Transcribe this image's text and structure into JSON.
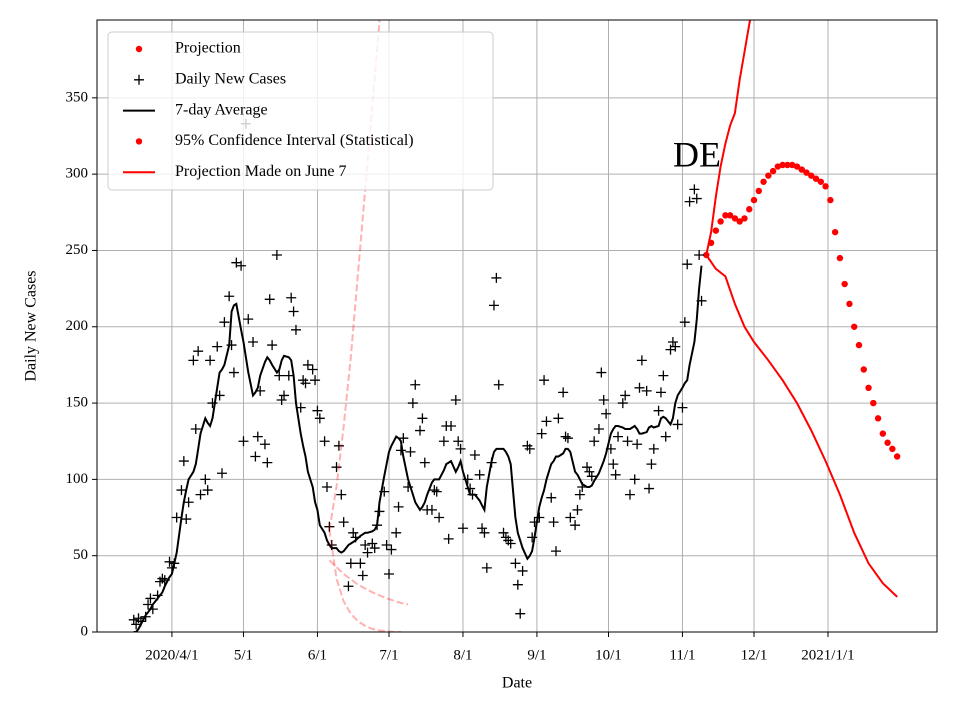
{
  "chart_data": {
    "type": "line",
    "annotation": "DE",
    "xlabel": "Date",
    "ylabel": "Daily New Cases",
    "xlim": [
      59.6,
      411.7
    ],
    "ylim": [
      0,
      401
    ],
    "xticks": [
      {
        "value": 91,
        "label": "2020/4/1"
      },
      {
        "value": 121,
        "label": "5/1"
      },
      {
        "value": 152,
        "label": "6/1"
      },
      {
        "value": 182,
        "label": "7/1"
      },
      {
        "value": 213,
        "label": "8/1"
      },
      {
        "value": 244,
        "label": "9/1"
      },
      {
        "value": 274,
        "label": "10/1"
      },
      {
        "value": 305,
        "label": "11/1"
      },
      {
        "value": 335,
        "label": "12/1"
      },
      {
        "value": 366,
        "label": "2021/1/1"
      }
    ],
    "yticks": [
      0,
      50,
      100,
      150,
      200,
      250,
      300,
      350
    ],
    "grid": true,
    "legend": "upper left",
    "x": [
      75,
      76,
      77,
      78,
      80,
      81,
      82,
      83,
      85,
      86,
      87,
      88,
      90,
      91,
      92,
      93,
      95,
      96,
      97,
      98,
      100,
      101,
      102,
      103,
      105,
      106,
      107,
      108,
      110,
      111,
      112,
      113,
      115,
      116,
      117,
      118,
      120,
      121,
      122,
      123,
      125,
      126,
      127,
      128,
      130,
      131,
      132,
      133,
      135,
      136,
      137,
      138,
      140,
      141,
      142,
      143,
      145,
      146,
      147,
      148,
      150,
      151,
      152,
      153,
      155,
      156,
      157,
      158,
      160,
      161,
      162,
      163,
      165,
      166,
      167,
      168,
      170,
      171,
      172,
      173,
      175,
      176,
      177,
      178,
      180,
      181,
      182,
      183,
      185,
      186,
      187,
      188,
      190,
      191,
      192,
      193,
      195,
      196,
      197,
      198,
      200,
      201,
      202,
      203,
      205,
      206,
      207,
      208,
      210,
      211,
      212,
      213,
      215,
      216,
      217,
      218,
      220,
      221,
      222,
      223,
      225,
      226,
      227,
      228,
      230,
      231,
      232,
      233,
      235,
      236,
      237,
      238,
      240,
      241,
      242,
      243,
      245,
      246,
      247,
      248,
      250,
      251,
      252,
      253,
      255,
      256,
      257,
      258,
      260,
      261,
      262,
      263,
      265,
      266,
      267,
      268,
      270,
      271,
      272,
      273,
      275,
      276,
      277,
      278,
      280,
      281,
      282,
      283,
      285,
      286,
      287,
      288,
      290,
      291,
      292,
      293,
      295,
      296,
      297,
      298,
      300,
      301,
      302,
      303,
      305,
      306,
      307,
      308,
      310,
      311,
      312,
      313
    ],
    "series": [
      {
        "name": "Projection",
        "color": "#ff0000",
        "marker": "dot",
        "x": [
          315,
          317,
          319,
          321,
          323,
          325,
          327,
          329,
          331,
          333,
          335,
          337,
          339,
          341,
          343,
          345,
          347,
          349,
          351,
          353,
          355,
          357,
          359,
          361,
          363,
          365,
          367,
          369,
          371,
          373,
          375,
          377,
          379,
          381,
          383,
          385,
          387,
          389,
          391,
          393,
          395
        ],
        "values": [
          247,
          255,
          263,
          269,
          273,
          273,
          271,
          269,
          271,
          277,
          283,
          289,
          295,
          299,
          302,
          305,
          306,
          306,
          306,
          305,
          303,
          301,
          299,
          297,
          295,
          292,
          283,
          262,
          245,
          228,
          215,
          200,
          188,
          172,
          160,
          150,
          140,
          130,
          124,
          120,
          115
        ]
      },
      {
        "name": "Daily New Cases",
        "color": "#000000",
        "marker": "plus",
        "values": [
          8,
          5,
          9,
          7,
          10,
          18,
          22,
          15,
          24,
          33,
          35,
          34,
          46,
          42,
          45,
          75,
          93,
          112,
          74,
          85,
          178,
          133,
          184,
          90,
          100,
          93,
          178,
          150,
          187,
          155,
          104,
          203,
          220,
          188,
          170,
          242,
          240,
          125,
          333,
          205,
          190,
          115,
          128,
          158,
          123,
          111,
          218,
          188,
          247,
          168,
          152,
          155,
          168,
          219,
          210,
          198,
          147,
          165,
          163,
          175,
          172,
          165,
          145,
          140,
          125,
          95,
          69,
          57,
          108,
          122,
          90,
          72,
          30,
          45,
          65,
          62,
          45,
          37,
          57,
          52,
          58,
          55,
          70,
          79,
          92,
          57,
          38,
          54,
          65,
          82,
          119,
          127,
          95,
          118,
          150,
          162,
          132,
          140,
          111,
          80,
          80,
          93,
          92,
          75,
          125,
          135,
          61,
          135,
          152,
          125,
          120,
          68,
          100,
          94,
          90,
          116,
          103,
          68,
          65,
          42,
          111,
          214,
          232,
          162,
          65,
          62,
          60,
          58,
          45,
          31,
          12,
          40,
          122,
          120,
          62,
          72,
          75,
          130,
          165,
          138,
          88,
          72,
          53,
          140,
          157,
          128,
          127,
          75,
          70,
          80,
          90,
          95,
          108,
          105,
          102,
          125,
          133,
          170,
          152,
          143,
          120,
          110,
          103,
          128,
          150,
          155,
          125,
          90,
          100,
          123,
          160,
          178,
          158,
          94,
          110,
          120,
          145,
          157,
          168,
          128,
          185,
          190,
          187,
          136,
          147,
          203,
          241,
          282,
          290,
          284,
          247,
          217
        ]
      },
      {
        "name": "7-day Average",
        "color": "#000000",
        "marker": "line",
        "values": [
          0,
          0,
          2,
          5,
          11,
          13,
          15,
          18,
          22,
          24,
          26,
          30,
          36,
          38,
          45,
          52,
          75,
          85,
          93,
          100,
          105,
          110,
          120,
          130,
          140,
          137,
          135,
          140,
          160,
          170,
          172,
          175,
          188,
          210,
          214,
          215,
          198,
          190,
          180,
          170,
          155,
          157,
          160,
          168,
          177,
          180,
          178,
          175,
          170,
          172,
          178,
          181,
          180,
          178,
          168,
          150,
          130,
          122,
          115,
          105,
          95,
          85,
          80,
          70,
          65,
          60,
          57,
          55,
          55,
          53,
          52,
          53,
          57,
          58,
          59,
          60,
          63,
          64,
          65,
          65,
          66,
          67,
          70,
          85,
          102,
          110,
          118,
          122,
          128,
          127,
          125,
          115,
          100,
          95,
          90,
          85,
          80,
          82,
          85,
          90,
          98,
          100,
          100,
          100,
          106,
          110,
          111,
          112,
          105,
          108,
          112,
          105,
          95,
          90,
          90,
          90,
          86,
          83,
          80,
          95,
          112,
          118,
          120,
          120,
          120,
          118,
          115,
          110,
          75,
          65,
          60,
          55,
          48,
          50,
          53,
          62,
          82,
          88,
          93,
          100,
          110,
          112,
          115,
          115,
          117,
          120,
          120,
          118,
          105,
          103,
          100,
          97,
          95,
          95,
          96,
          99,
          104,
          108,
          112,
          117,
          130,
          133,
          135,
          135,
          134,
          133,
          133,
          133,
          135,
          133,
          130,
          130,
          131,
          134,
          135,
          134,
          135,
          140,
          141,
          140,
          136,
          140,
          150,
          155,
          160,
          163,
          165,
          175,
          190,
          205,
          225,
          240
        ]
      },
      {
        "name": "95% Confidence Interval (Statistical)",
        "color": "#ff0000",
        "marker": "dot",
        "lines": [
          {
            "x": [
              315,
              317,
              319,
              321,
              323,
              325,
              327,
              329,
              331,
              333,
              335
            ],
            "values": [
              247,
              262,
              285,
              305,
              320,
              332,
              340,
              362,
              380,
              398,
              415
            ]
          },
          {
            "x": [
              315,
              319,
              323,
              327,
              331,
              335,
              341,
              347,
              353,
              359,
              365,
              371,
              377,
              383,
              389,
              395
            ],
            "values": [
              247,
              238,
              233,
              215,
              200,
              190,
              178,
              165,
              150,
              132,
              112,
              90,
              65,
              45,
              32,
              23
            ]
          }
        ]
      },
      {
        "name": "Projection Made on June 7",
        "color": "#ff0000",
        "marker": "line",
        "line_style": "dashed",
        "line_alpha": 0.3,
        "lines": [
          {
            "x": [
              157,
              160,
              163,
              166,
              169,
              172,
              175,
              178,
              179
            ],
            "values": [
              67,
              95,
              135,
              180,
              235,
              290,
              345,
              400,
              420
            ]
          },
          {
            "x": [
              157,
              160,
              163,
              166,
              169,
              172,
              175,
              178,
              181,
              184,
              187
            ],
            "values": [
              67,
              35,
              20,
              12,
              7,
              4,
              2,
              1,
              0.5,
              0,
              0
            ]
          },
          {
            "x": [
              157,
              163,
              169,
              175,
              181,
              187,
              190
            ],
            "values": [
              47,
              38,
              31,
              26,
              22,
              19,
              18
            ]
          }
        ]
      }
    ]
  }
}
